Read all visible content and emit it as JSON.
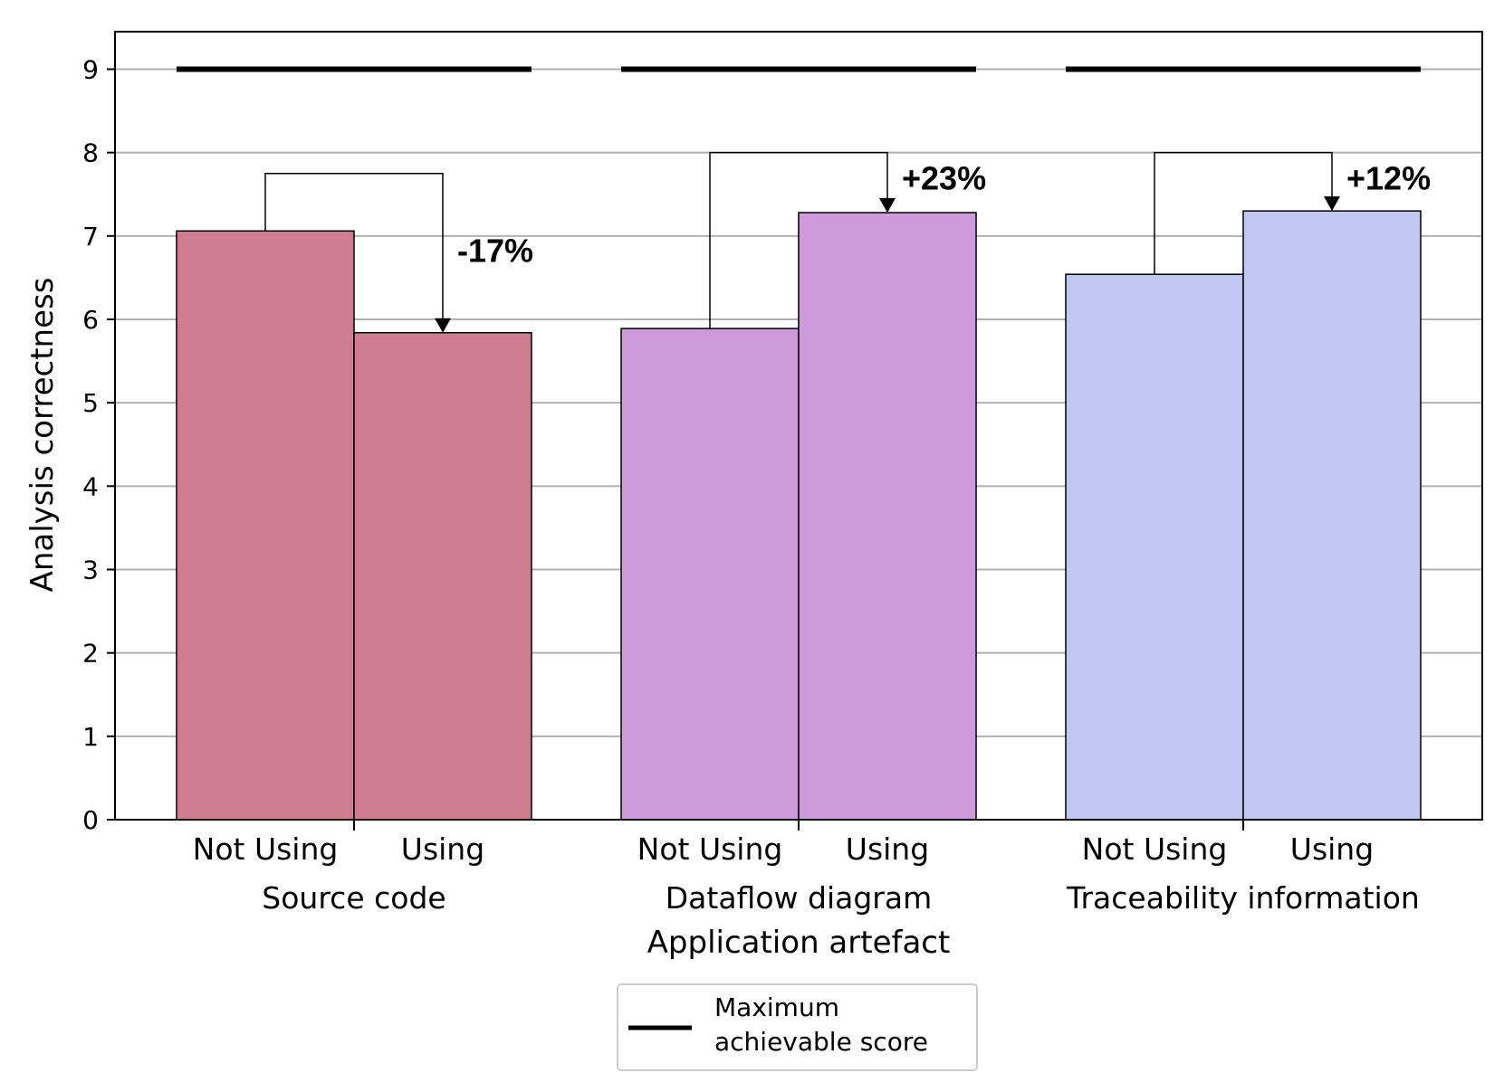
{
  "chart_data": {
    "type": "bar",
    "xlabel": "Application artefact",
    "ylabel": "Analysis correctness",
    "ylim": [
      0,
      9.45
    ],
    "yticks": [
      0,
      1,
      2,
      3,
      4,
      5,
      6,
      7,
      8,
      9
    ],
    "grid": "horizontal",
    "groups": [
      {
        "label": "Source code",
        "color": "#cf7d91",
        "bars": [
          {
            "label": "Not Using",
            "value": 7.06
          },
          {
            "label": "Using",
            "value": 5.84
          }
        ],
        "max_score": 9,
        "change": {
          "label": "-17%",
          "bracket_top": 7.75
        }
      },
      {
        "label": "Dataflow diagram",
        "color": "#cd9bda",
        "bars": [
          {
            "label": "Not Using",
            "value": 5.89
          },
          {
            "label": "Using",
            "value": 7.28
          }
        ],
        "max_score": 9,
        "change": {
          "label": "+23%",
          "bracket_top": 8.0
        }
      },
      {
        "label": "Traceability information",
        "color": "#c0c8f2",
        "bars": [
          {
            "label": "Not Using",
            "value": 6.54
          },
          {
            "label": "Using",
            "value": 7.3
          }
        ],
        "max_score": 9,
        "change": {
          "label": "+12%",
          "bracket_top": 8.0
        }
      }
    ],
    "legend": {
      "placement": "bottom-center",
      "entries": [
        {
          "line1": "Maximum",
          "line2": "achievable score",
          "color": "#000000"
        }
      ]
    }
  }
}
